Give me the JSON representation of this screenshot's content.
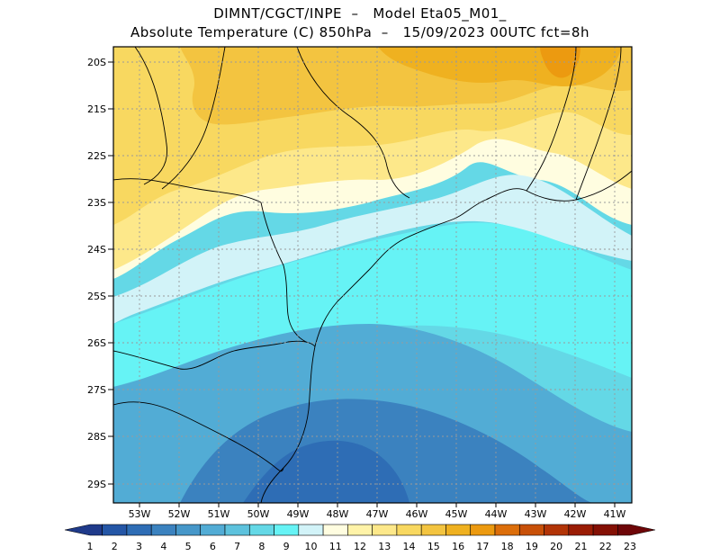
{
  "header": {
    "title_line1": "DIMNT/CGCT/INPE  –   Model Eta05_M01_",
    "title_line2": "Absolute Temperature (C) 850hPa  –   15/09/2023 00UTC fct=8h"
  },
  "map": {
    "lat_labels": [
      "20S",
      "21S",
      "22S",
      "23S",
      "24S",
      "25S",
      "26S",
      "27S",
      "28S",
      "29S"
    ],
    "lon_labels": [
      "53W",
      "52W",
      "51W",
      "50W",
      "49W",
      "48W",
      "47W",
      "46W",
      "45W",
      "44W",
      "43W",
      "42W",
      "41W"
    ]
  },
  "colorbar": {
    "labels": [
      "1",
      "2",
      "3",
      "4",
      "5",
      "6",
      "7",
      "8",
      "9",
      "10",
      "11",
      "12",
      "13",
      "14",
      "15",
      "16",
      "17",
      "18",
      "19",
      "20",
      "21",
      "22",
      "23"
    ],
    "colors": [
      "#1f3a8a",
      "#2456a6",
      "#2e6db5",
      "#3b82bf",
      "#4697c9",
      "#52acd5",
      "#5dc2dd",
      "#64d8e6",
      "#66f3f5",
      "#d2f3f8",
      "#fffde0",
      "#fff3a8",
      "#fde88a",
      "#f8d860",
      "#f3c440",
      "#efb120",
      "#ec9a10",
      "#dc6e0a",
      "#c85008",
      "#b23406",
      "#9a1c04",
      "#841004",
      "#6e0608"
    ]
  }
}
